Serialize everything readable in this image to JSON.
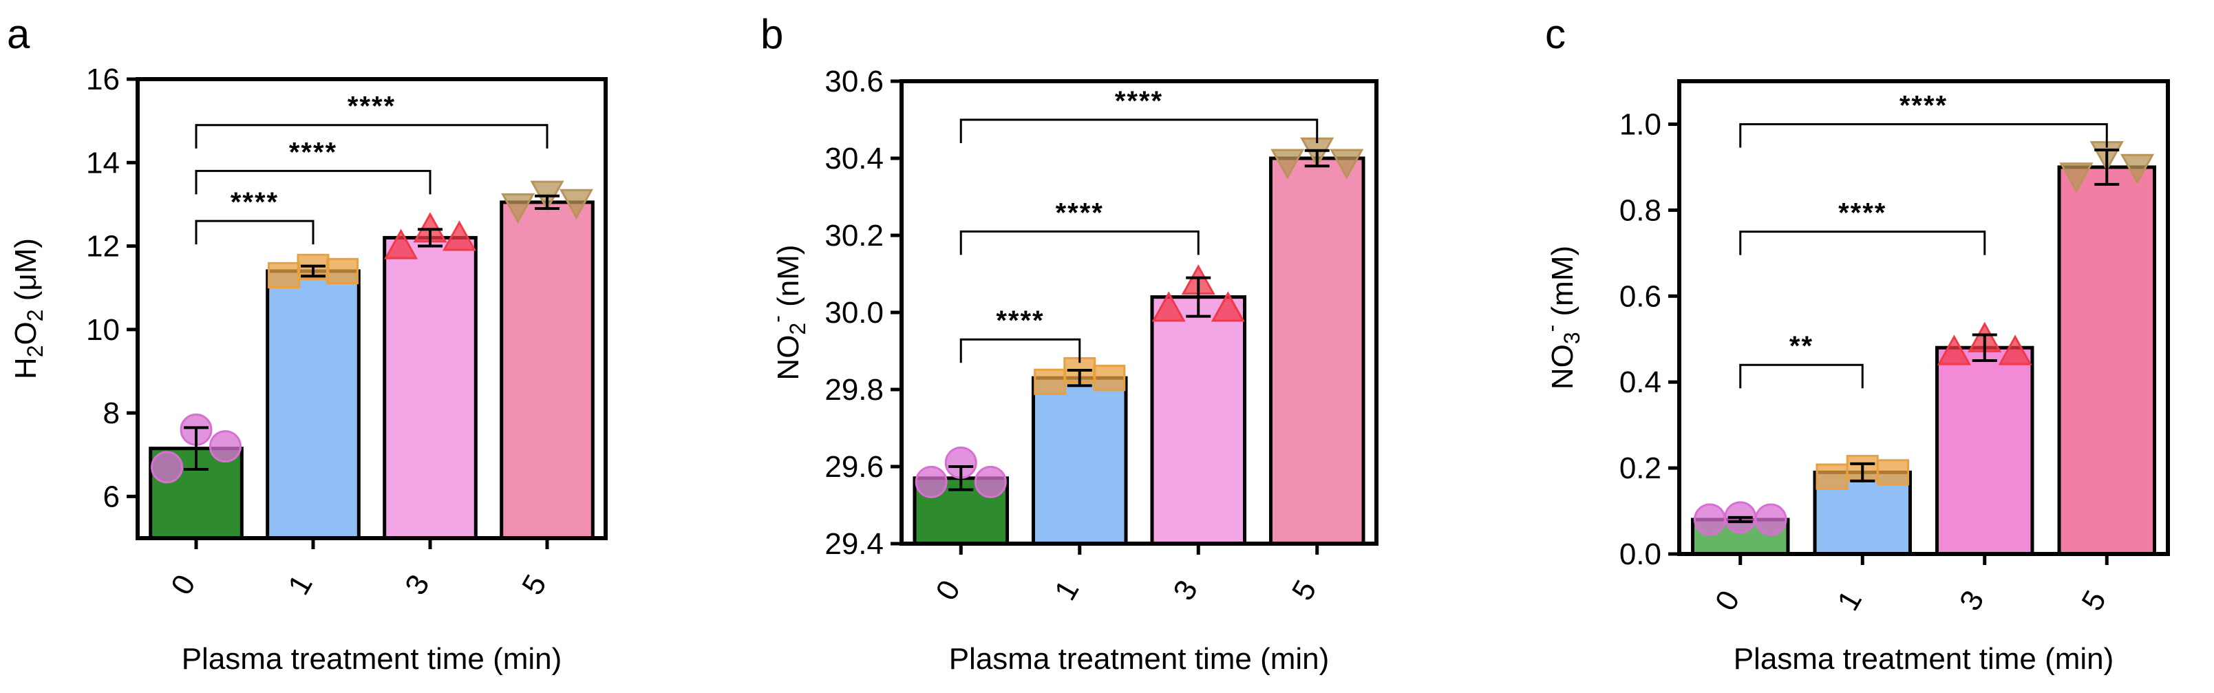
{
  "chart_data": [
    {
      "type": "bar",
      "panel_label": "a",
      "categories": [
        "0",
        "1",
        "3",
        "5"
      ],
      "values": [
        7.15,
        11.4,
        12.2,
        13.05
      ],
      "errors": [
        0.5,
        0.12,
        0.2,
        0.15
      ],
      "points": [
        [
          6.7,
          7.6,
          7.2
        ],
        [
          11.3,
          11.5,
          11.4
        ],
        [
          12.0,
          12.4,
          12.2
        ],
        [
          12.95,
          13.25,
          13.05
        ]
      ],
      "ylabel_main": "H",
      "ylabel_sub": "2",
      "ylabel_main2": "O",
      "ylabel_sub2": "2",
      "ylabel_unit": " (μM)",
      "xlabel": "Plasma treatment time (min)",
      "ylim": [
        5,
        16
      ],
      "yticks": [
        "6",
        "8",
        "10",
        "12",
        "14",
        "16"
      ],
      "ytick_values": [
        6,
        8,
        10,
        12,
        14,
        16
      ],
      "significance": [
        {
          "from": 0,
          "to": 1,
          "label": "****",
          "y": 12.6
        },
        {
          "from": 0,
          "to": 2,
          "label": "****",
          "y": 13.8
        },
        {
          "from": 0,
          "to": 3,
          "label": "****",
          "y": 14.9
        }
      ]
    },
    {
      "type": "bar",
      "panel_label": "b",
      "categories": [
        "0",
        "1",
        "3",
        "5"
      ],
      "values": [
        29.57,
        29.83,
        30.04,
        30.4
      ],
      "errors": [
        0.03,
        0.02,
        0.05,
        0.02
      ],
      "points": [
        [
          29.56,
          29.61,
          29.56
        ],
        [
          29.82,
          29.85,
          29.83
        ],
        [
          30.01,
          30.08,
          30.01
        ],
        [
          30.39,
          30.42,
          30.39
        ]
      ],
      "ylabel_main": "NO",
      "ylabel_sub": "2",
      "ylabel_sup": "-",
      "ylabel_unit": " (nM)",
      "xlabel": "Plasma treatment time (min)",
      "ylim": [
        29.4,
        30.6
      ],
      "yticks": [
        "29.4",
        "29.6",
        "29.8",
        "30.0",
        "30.2",
        "30.4",
        "30.6"
      ],
      "ytick_values": [
        29.4,
        29.6,
        29.8,
        30.0,
        30.2,
        30.4,
        30.6
      ],
      "significance": [
        {
          "from": 0,
          "to": 1,
          "label": "****",
          "y": 29.93
        },
        {
          "from": 0,
          "to": 2,
          "label": "****",
          "y": 30.21
        },
        {
          "from": 0,
          "to": 3,
          "label": "****",
          "y": 30.5
        }
      ]
    },
    {
      "type": "bar",
      "panel_label": "c",
      "categories": [
        "0",
        "1",
        "3",
        "5"
      ],
      "values": [
        0.08,
        0.19,
        0.48,
        0.9
      ],
      "errors": [
        0.005,
        0.02,
        0.03,
        0.04
      ],
      "points": [
        [
          0.08,
          0.085,
          0.08
        ],
        [
          0.18,
          0.2,
          0.19
        ],
        [
          0.47,
          0.5,
          0.47
        ],
        [
          0.88,
          0.93,
          0.9
        ]
      ],
      "ylabel_main": "NO",
      "ylabel_sub": "3",
      "ylabel_sup": "-",
      "ylabel_unit": " (mM)",
      "xlabel": "Plasma treatment time (min)",
      "ylim": [
        0.0,
        1.1
      ],
      "yticks": [
        "0.0",
        "0.2",
        "0.4",
        "0.6",
        "0.8",
        "1.0"
      ],
      "ytick_values": [
        0.0,
        0.2,
        0.4,
        0.6,
        0.8,
        1.0
      ],
      "significance": [
        {
          "from": 0,
          "to": 1,
          "label": "**",
          "y": 0.44
        },
        {
          "from": 0,
          "to": 2,
          "label": "****",
          "y": 0.75
        },
        {
          "from": 0,
          "to": 3,
          "label": "****",
          "y": 1.0
        }
      ]
    }
  ],
  "colors": {
    "bar_fills": [
      "#2e8b2e",
      "#8fbff5",
      "#f2a6e6",
      "#f290b4"
    ],
    "bar_fills_c": [
      "#66b566",
      "#8fbff5",
      "#f28ad8",
      "#f27fa3"
    ],
    "point_colors": [
      "#d86fd3",
      "#e8a040",
      "#f03a4a",
      "#b8945a"
    ],
    "point_shapes": [
      "circle",
      "square",
      "triangle-up",
      "triangle-down"
    ]
  }
}
